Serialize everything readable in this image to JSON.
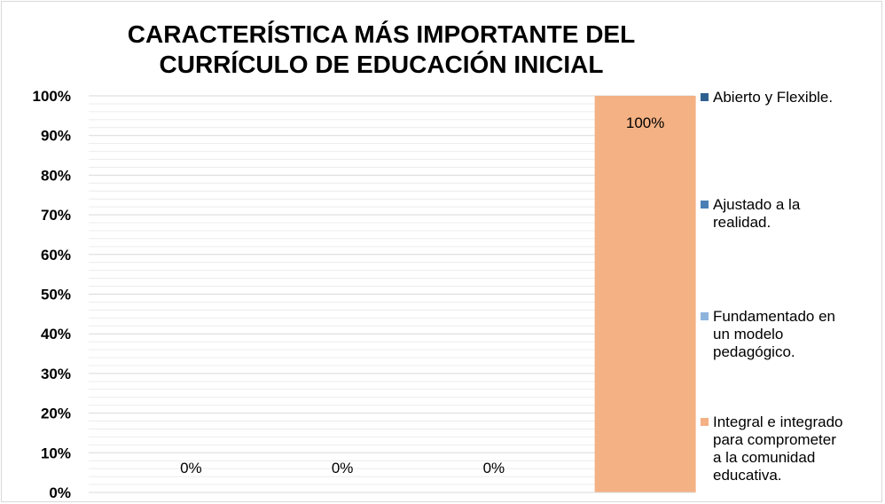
{
  "chart_data": {
    "type": "bar",
    "title_lines": [
      "CARACTERÍSTICA MÁS IMPORTANTE DEL",
      "CURRÍCULO DE EDUCACIÓN INICIAL"
    ],
    "categories": [
      "Abierto y Flexible.",
      "Ajustado a la realidad.",
      "Fundamentado en un modelo pedagógico.",
      "Integral e integrado para comprometer a la comunidad educativa."
    ],
    "values": [
      0,
      0,
      0,
      100
    ],
    "data_labels": [
      "0%",
      "0%",
      "0%",
      "100%"
    ],
    "colors": [
      "#2f5f8f",
      "#4a7fb5",
      "#8eb4dc",
      "#f4b183"
    ],
    "y_ticks": [
      "0%",
      "10%",
      "20%",
      "30%",
      "40%",
      "50%",
      "60%",
      "70%",
      "80%",
      "90%",
      "100%"
    ],
    "ylim": [
      0,
      100
    ],
    "grid": true,
    "legend_position": "right",
    "legend": [
      "Abierto y Flexible.",
      "Ajustado a la\nrealidad.",
      "Fundamentado en\nun modelo\npedagógico.",
      "Integral e integrado\npara    comprometer\na la comunidad\neducativa."
    ]
  }
}
